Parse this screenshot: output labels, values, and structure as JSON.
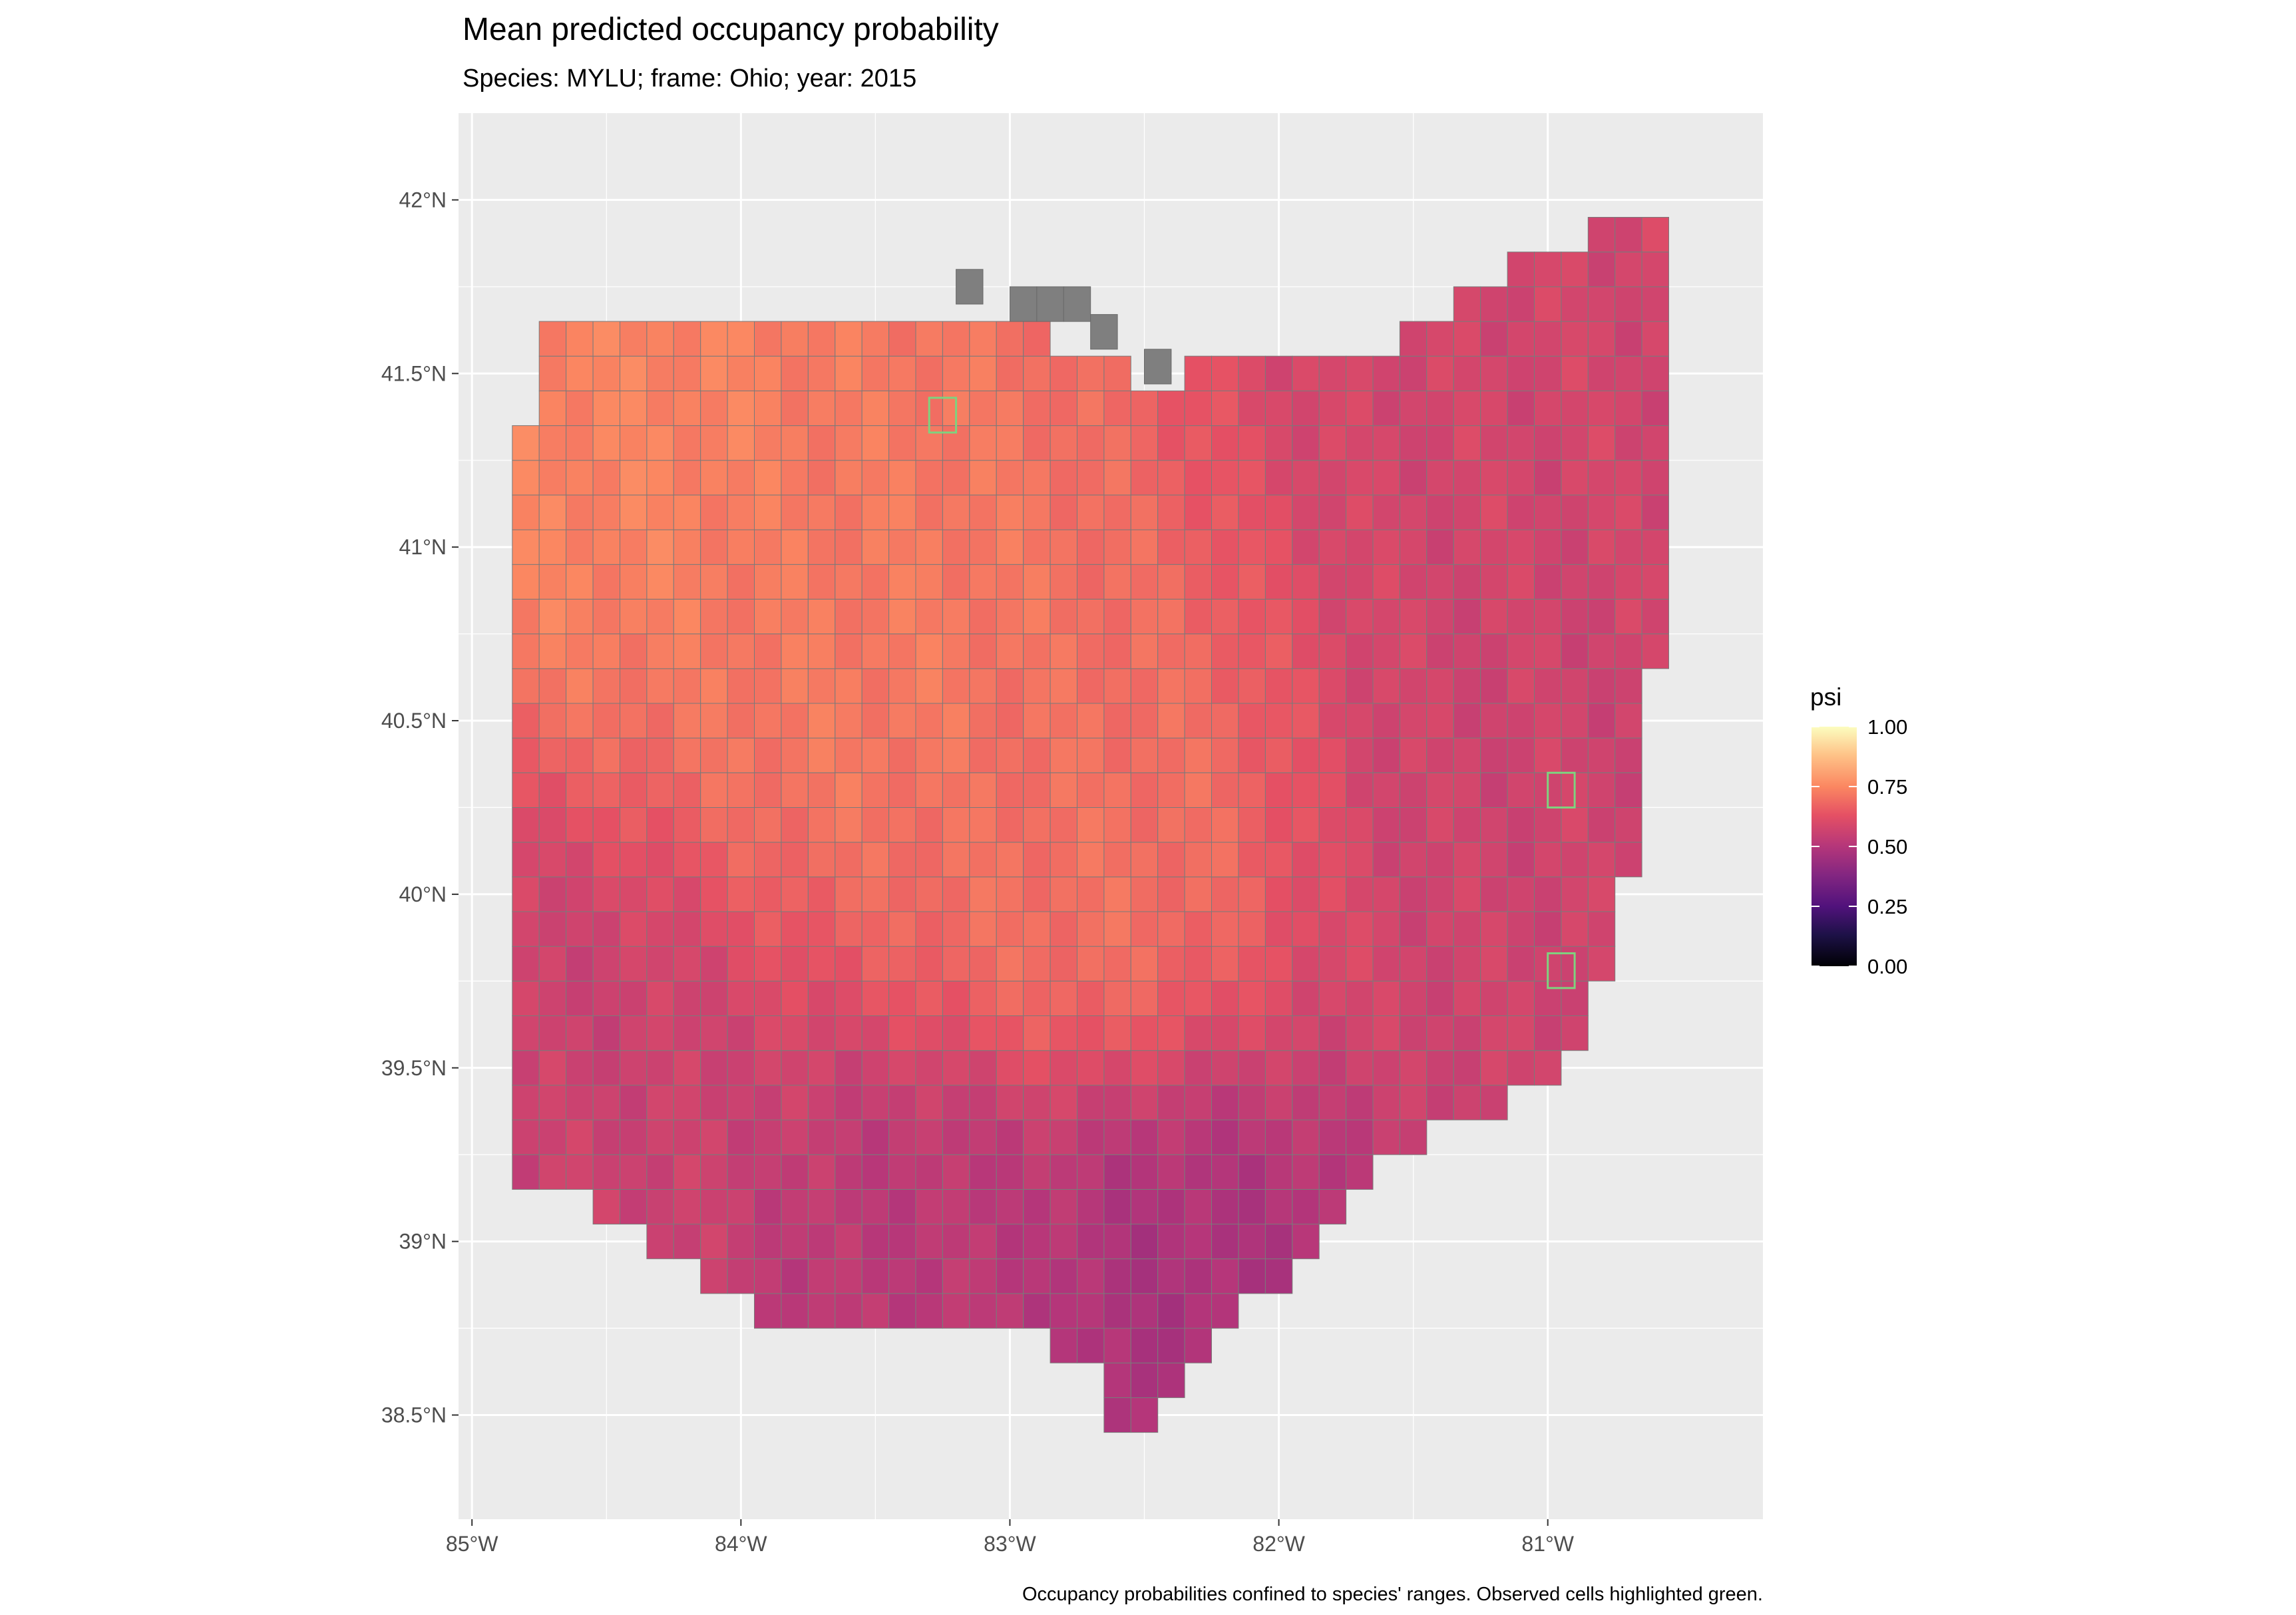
{
  "chart_data": {
    "type": "heatmap",
    "title": "Mean predicted occupancy probability",
    "subtitle": "Species: MYLU; frame: Ohio; year: 2015",
    "caption": "Occupancy probabilities confined to species' ranges. Observed cells highlighted green.",
    "x_axis": {
      "range": [
        -85.05,
        -80.2
      ],
      "ticks": [
        -85,
        -84,
        -83,
        -82,
        -81
      ],
      "tick_labels": [
        "85°W",
        "84°W",
        "83°W",
        "82°W",
        "81°W"
      ]
    },
    "y_axis": {
      "range": [
        38.2,
        42.25
      ],
      "ticks": [
        38.5,
        39,
        39.5,
        40,
        40.5,
        41,
        41.5,
        42
      ],
      "tick_labels": [
        "38.5°N",
        "39°N",
        "39.5°N",
        "40°N",
        "40.5°N",
        "41°N",
        "41.5°N",
        "42°N"
      ]
    },
    "grid": true,
    "panel_background": "#ebebeb",
    "cell_size_deg": 0.1,
    "colorscale": "magma",
    "na_color": "#7f7f7f",
    "observed_outline_color": "#7fd27f",
    "legend": {
      "title": "psi",
      "placement": "right",
      "range": [
        0,
        1
      ],
      "ticks": [
        0,
        0.25,
        0.5,
        0.75,
        1
      ],
      "tick_labels": [
        "0.00",
        "0.25",
        "0.50",
        "0.75",
        "1.00"
      ]
    },
    "region_polygon_lonlat": [
      [
        -84.78,
        41.68
      ],
      [
        -84.35,
        41.68
      ],
      [
        -83.45,
        41.7
      ],
      [
        -83.15,
        41.64
      ],
      [
        -82.7,
        41.57
      ],
      [
        -82.45,
        41.48
      ],
      [
        -82.2,
        41.55
      ],
      [
        -81.7,
        41.55
      ],
      [
        -81.4,
        41.68
      ],
      [
        -81.1,
        41.82
      ],
      [
        -80.72,
        41.96
      ],
      [
        -80.52,
        42.02
      ],
      [
        -80.52,
        41.55
      ],
      [
        -80.52,
        40.95
      ],
      [
        -80.58,
        40.7
      ],
      [
        -80.65,
        40.45
      ],
      [
        -80.68,
        40.1
      ],
      [
        -80.8,
        39.8
      ],
      [
        -80.9,
        39.55
      ],
      [
        -81.1,
        39.42
      ],
      [
        -81.45,
        39.3
      ],
      [
        -81.75,
        39.15
      ],
      [
        -82.05,
        38.85
      ],
      [
        -82.25,
        38.7
      ],
      [
        -82.4,
        38.55
      ],
      [
        -82.55,
        38.38
      ],
      [
        -82.7,
        38.6
      ],
      [
        -82.85,
        38.72
      ],
      [
        -83.1,
        38.7
      ],
      [
        -83.5,
        38.74
      ],
      [
        -83.9,
        38.78
      ],
      [
        -84.25,
        38.96
      ],
      [
        -84.55,
        39.12
      ],
      [
        -84.81,
        39.2
      ],
      [
        -84.81,
        39.8
      ],
      [
        -84.81,
        40.5
      ],
      [
        -84.81,
        41.2
      ]
    ],
    "probability_gradient": {
      "description_points": [
        {
          "lon": -84.5,
          "lat": 41.4,
          "psi": 0.74
        },
        {
          "lon": -83.5,
          "lat": 40.8,
          "psi": 0.72
        },
        {
          "lon": -82.8,
          "lat": 40.2,
          "psi": 0.7
        },
        {
          "lon": -81.2,
          "lat": 41.5,
          "psi": 0.58
        },
        {
          "lon": -81.0,
          "lat": 40.3,
          "psi": 0.57
        },
        {
          "lon": -82.4,
          "lat": 38.7,
          "psi": 0.48
        },
        {
          "lon": -83.3,
          "lat": 38.8,
          "psi": 0.52
        },
        {
          "lon": -84.7,
          "lat": 39.3,
          "psi": 0.56
        }
      ]
    },
    "na_cells_lonlat": [
      [
        -83.15,
        41.75
      ],
      [
        -82.95,
        41.7
      ],
      [
        -82.85,
        41.7
      ],
      [
        -82.75,
        41.7
      ],
      [
        -82.65,
        41.62
      ],
      [
        -82.45,
        41.52
      ]
    ],
    "observed_cells_lonlat": [
      [
        -83.25,
        41.38
      ],
      [
        -80.95,
        40.3
      ],
      [
        -80.95,
        39.78
      ]
    ]
  }
}
